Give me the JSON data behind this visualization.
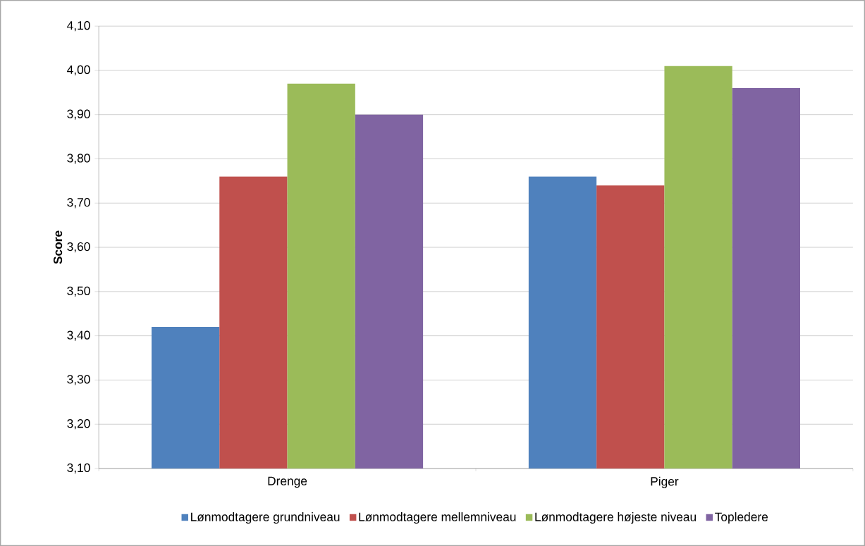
{
  "chart_data": {
    "type": "bar",
    "ylabel": "Score",
    "categories": [
      "Drenge",
      "Piger"
    ],
    "series": [
      {
        "name": "Lønmodtagere grundniveau",
        "color": "#4f81bd",
        "values": [
          3.42,
          3.76
        ]
      },
      {
        "name": "Lønmodtagere mellemniveau",
        "color": "#c0504d",
        "values": [
          3.76,
          3.74
        ]
      },
      {
        "name": "Lønmodtagere højeste niveau",
        "color": "#9bbb59",
        "values": [
          3.97,
          4.01
        ]
      },
      {
        "name": "Topledere",
        "color": "#8064a2",
        "values": [
          3.9,
          3.96
        ]
      }
    ],
    "ylim": [
      3.1,
      4.1
    ],
    "yticks": [
      {
        "value": 3.1,
        "label": "3,10"
      },
      {
        "value": 3.2,
        "label": "3,20"
      },
      {
        "value": 3.3,
        "label": "3,30"
      },
      {
        "value": 3.4,
        "label": "3,40"
      },
      {
        "value": 3.5,
        "label": "3,50"
      },
      {
        "value": 3.6,
        "label": "3,60"
      },
      {
        "value": 3.7,
        "label": "3,70"
      },
      {
        "value": 3.8,
        "label": "3,80"
      },
      {
        "value": 3.9,
        "label": "3,90"
      },
      {
        "value": 4.0,
        "label": "4,00"
      },
      {
        "value": 4.1,
        "label": "4,10"
      }
    ],
    "grid": "y",
    "legend": "bottom"
  }
}
